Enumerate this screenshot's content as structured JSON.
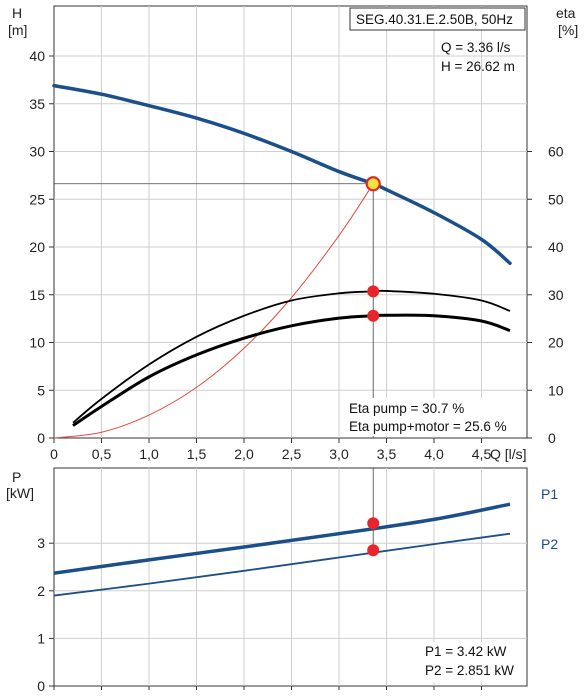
{
  "chart_data": [
    {
      "type": "line",
      "title": "SEG.40.31.E.2.50B, 50Hz",
      "xlabel": "Q [l/s]",
      "ylabel": "H [m]",
      "ylabel_top": "H",
      "ylabel_unit": "[m]",
      "y2label_top": "eta",
      "y2label_unit": "[%]",
      "xlabel_text": "Q [l/s]",
      "xlim": [
        0,
        5.0
      ],
      "ylim": [
        0,
        45
      ],
      "y2lim": [
        0,
        90
      ],
      "grid": true,
      "x_ticks": [
        "0",
        "0,5",
        "1,0",
        "1,5",
        "2,0",
        "2,5",
        "3,0",
        "3,5",
        "4,0",
        "4,5"
      ],
      "y_ticks": [
        "0",
        "5",
        "10",
        "15",
        "20",
        "25",
        "30",
        "35",
        "40"
      ],
      "y2_ticks": [
        "0",
        "10",
        "20",
        "30",
        "40",
        "50",
        "60"
      ],
      "series": [
        {
          "name": "H",
          "color": "#1a4f8a",
          "x": [
            0,
            0.5,
            1.0,
            1.5,
            2.0,
            2.5,
            3.0,
            3.36,
            3.5,
            4.0,
            4.5,
            4.8
          ],
          "y": [
            36.9,
            36.0,
            34.8,
            33.5,
            31.9,
            30.0,
            27.9,
            26.62,
            26.0,
            23.6,
            20.8,
            18.3
          ]
        },
        {
          "name": "Eta pump",
          "color": "#000000",
          "x": [
            0.2,
            0.5,
            1.0,
            1.5,
            2.0,
            2.5,
            3.0,
            3.36,
            3.5,
            4.0,
            4.5,
            4.8
          ],
          "y": [
            3.2,
            8.2,
            15.4,
            21.2,
            25.6,
            28.8,
            30.3,
            30.7,
            30.8,
            30.2,
            28.8,
            26.6
          ]
        },
        {
          "name": "Eta pump+motor",
          "color": "#000000",
          "x": [
            0.2,
            0.5,
            1.0,
            1.5,
            2.0,
            2.5,
            3.0,
            3.36,
            3.5,
            4.0,
            4.5,
            4.8
          ],
          "y": [
            2.6,
            6.6,
            12.8,
            17.4,
            20.9,
            23.5,
            25.1,
            25.6,
            25.7,
            25.6,
            24.5,
            22.5
          ]
        },
        {
          "name": "System curve",
          "color": "#e84a3c",
          "x": [
            0,
            0.5,
            1.0,
            1.5,
            2.0,
            2.5,
            3.0,
            3.36
          ],
          "y": [
            0,
            0.6,
            2.4,
            5.3,
            9.4,
            14.7,
            21.2,
            26.62
          ]
        }
      ],
      "operating_point": {
        "q": 3.36,
        "h": 26.62,
        "eta_pump": 30.7,
        "eta_total": 25.6
      },
      "annotations": {
        "q": "Q = 3.36 l/s",
        "h": "H = 26.62 m",
        "eta_pump": "Eta pump = 30.7 %",
        "eta_total": "Eta pump+motor = 25.6 %"
      }
    },
    {
      "type": "line",
      "ylabel": "P [kW]",
      "ylabel_top": "P",
      "ylabel_unit": "[kW]",
      "xlim": [
        0,
        5.0
      ],
      "ylim": [
        0,
        4.5
      ],
      "grid": true,
      "y_ticks": [
        "0",
        "1",
        "2",
        "3"
      ],
      "series": [
        {
          "name": "P1",
          "color": "#1a4f8a",
          "x": [
            0,
            1,
            2,
            3,
            4,
            4.8
          ],
          "y": [
            2.37,
            2.65,
            2.92,
            3.2,
            3.5,
            3.82
          ]
        },
        {
          "name": "P2",
          "color": "#1a4f8a",
          "x": [
            0,
            1,
            2,
            3,
            4,
            4.8
          ],
          "y": [
            1.9,
            2.15,
            2.42,
            2.7,
            2.98,
            3.2
          ]
        }
      ],
      "operating_point": {
        "q": 3.36,
        "p1": 3.42,
        "p2": 2.851
      },
      "annotations": {
        "p1": "P1 = 3.42 kW",
        "p2": "P2 = 2.851 kW"
      }
    }
  ]
}
